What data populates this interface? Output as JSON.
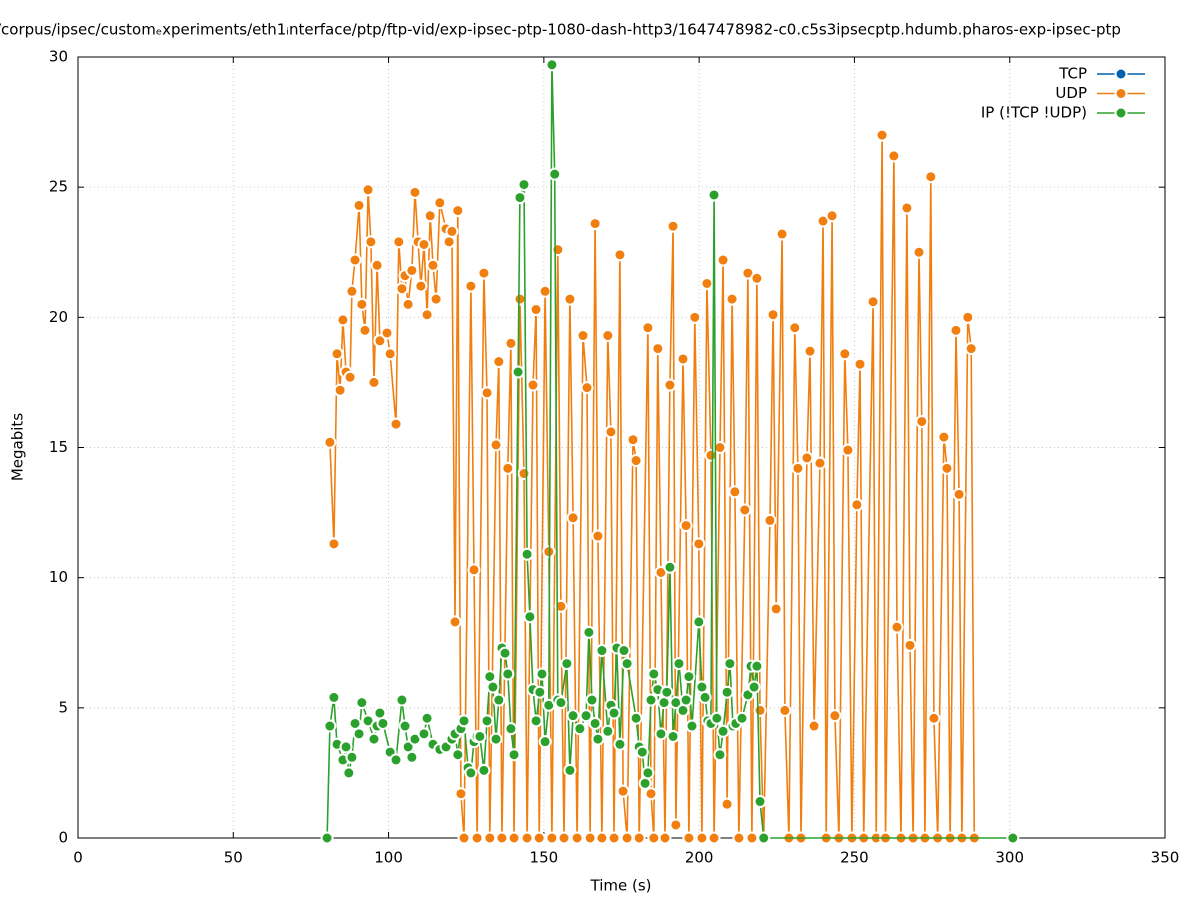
{
  "chart_data": {
    "type": "line",
    "title": "/corpus/ipsec/customₑxperiments/eth1ᵢnterface/ptp/ftp-vid/exp-ipsec-ptp-1080-dash-http3/1647478982-c0.c5s3ipsecptp.hdumb.pharos-exp-ipsec-ptp",
    "x_label": "Time (s)",
    "y_label": "Megabits",
    "xlim": [
      0,
      350
    ],
    "xticks": [
      0,
      50,
      100,
      150,
      200,
      250,
      300,
      350
    ],
    "ylim": [
      0,
      30
    ],
    "yticks": [
      0,
      5,
      10,
      15,
      20,
      25,
      30
    ],
    "grid": true,
    "legend": "top-right",
    "series": [
      {
        "name": "TCP",
        "color": "#0060ad",
        "x": [],
        "values": []
      },
      {
        "name": "UDP",
        "color": "#f07f10",
        "x": [
          81.1,
          82.4,
          83.4,
          84.4,
          85.3,
          86.3,
          87.6,
          88.2,
          89.2,
          90.5,
          91.4,
          92.4,
          93.4,
          94.3,
          95.3,
          96.3,
          97.2,
          99.5,
          100.5,
          102.4,
          103.3,
          104.3,
          105.3,
          106.3,
          107.5,
          108.5,
          109.5,
          110.4,
          111.4,
          112.4,
          113.4,
          114.3,
          115.3,
          116.5,
          118.5,
          119.5,
          120.4,
          121.4,
          122.3,
          123.3,
          124.3,
          126.5,
          127.5,
          128.5,
          130.7,
          131.7,
          132.6,
          134.6,
          135.5,
          136.5,
          138.4,
          139.4,
          140.4,
          142.3,
          143.6,
          144.6,
          146.5,
          147.5,
          148.5,
          150.4,
          151.6,
          152.6,
          154.5,
          155.5,
          156.5,
          158.4,
          159.4,
          160.7,
          162.6,
          163.9,
          164.9,
          166.5,
          167.4,
          168.7,
          170.6,
          171.6,
          172.6,
          174.5,
          175.5,
          176.8,
          178.7,
          179.7,
          180.7,
          183.5,
          184.5,
          185.4,
          186.7,
          187.7,
          189.0,
          190.6,
          191.6,
          192.5,
          194.8,
          195.8,
          196.7,
          198.6,
          199.9,
          200.9,
          202.5,
          203.8,
          204.8,
          206.7,
          207.7,
          209.0,
          210.6,
          211.5,
          212.8,
          214.7,
          215.7,
          217.0,
          218.6,
          219.6,
          220.8,
          222.8,
          223.8,
          224.8,
          226.7,
          227.6,
          228.9,
          230.8,
          231.8,
          232.8,
          234.7,
          235.7,
          237.0,
          238.9,
          239.9,
          240.9,
          242.8,
          243.7,
          245.0,
          246.9,
          247.9,
          249.2,
          250.8,
          251.8,
          253.0,
          256.0,
          257.0,
          258.9,
          260.0,
          262.7,
          263.7,
          265.0,
          266.9,
          267.9,
          268.9,
          270.8,
          271.7,
          272.7,
          274.6,
          275.6,
          276.8,
          278.8,
          279.8,
          280.8,
          282.7,
          283.7,
          284.6,
          286.5,
          287.6,
          288.6
        ],
        "values": [
          15.2,
          11.3,
          18.6,
          17.2,
          19.9,
          17.9,
          17.7,
          21.0,
          22.2,
          24.3,
          20.5,
          19.5,
          24.9,
          22.9,
          17.5,
          22.0,
          19.1,
          19.4,
          18.6,
          15.9,
          22.9,
          21.1,
          21.6,
          20.5,
          21.8,
          24.8,
          22.9,
          21.2,
          22.8,
          20.1,
          23.9,
          22.0,
          20.7,
          24.4,
          23.4,
          22.9,
          23.3,
          8.3,
          24.1,
          1.7,
          0,
          21.2,
          10.3,
          0,
          21.7,
          17.1,
          0,
          15.1,
          18.3,
          0,
          14.2,
          19.0,
          0,
          20.7,
          14.0,
          0,
          17.4,
          20.3,
          0,
          21.0,
          11.0,
          0,
          22.6,
          8.9,
          0,
          20.7,
          12.3,
          0,
          19.3,
          17.3,
          0,
          23.6,
          11.6,
          0,
          19.3,
          15.6,
          0,
          22.4,
          1.8,
          0,
          15.3,
          14.5,
          0,
          19.6,
          1.7,
          0,
          18.8,
          10.2,
          0,
          17.4,
          23.5,
          0.5,
          18.4,
          12.0,
          0,
          20.0,
          11.3,
          0,
          21.3,
          14.7,
          0,
          15.0,
          22.2,
          1.3,
          20.7,
          13.3,
          0,
          12.6,
          21.7,
          0,
          21.5,
          4.9,
          0,
          12.2,
          20.1,
          8.8,
          23.2,
          4.9,
          0,
          19.6,
          14.2,
          0,
          14.6,
          18.7,
          4.3,
          14.4,
          23.7,
          0,
          23.9,
          4.7,
          0,
          18.6,
          14.9,
          0,
          12.8,
          18.2,
          0,
          20.6,
          0,
          27.0,
          0,
          26.2,
          8.1,
          0,
          24.2,
          7.4,
          0,
          22.5,
          16.0,
          0,
          25.4,
          4.6,
          0,
          15.4,
          14.2,
          0,
          19.5,
          13.2,
          0,
          20.0,
          18.8,
          0
        ]
      },
      {
        "name": "IP (!TCP  !UDP)",
        "color": "#2ca02c",
        "x": [
          80.2,
          81.1,
          82.4,
          83.4,
          85.3,
          86.3,
          87.2,
          88.2,
          89.2,
          90.5,
          91.4,
          93.4,
          95.3,
          96.3,
          97.2,
          98.2,
          100.5,
          102.4,
          104.3,
          105.3,
          106.3,
          107.5,
          108.5,
          111.4,
          112.4,
          114.3,
          116.5,
          118.5,
          120.4,
          121.4,
          122.3,
          123.3,
          124.3,
          125.6,
          126.5,
          127.5,
          128.5,
          129.4,
          130.7,
          131.7,
          132.6,
          133.6,
          134.6,
          135.5,
          136.5,
          137.5,
          138.4,
          139.4,
          140.4,
          141.7,
          142.3,
          143.6,
          144.6,
          145.5,
          146.5,
          147.5,
          148.7,
          149.4,
          150.4,
          151.6,
          152.6,
          153.5,
          154.5,
          155.5,
          157.4,
          158.4,
          159.4,
          161.6,
          163.6,
          164.5,
          165.5,
          166.5,
          167.4,
          168.7,
          170.6,
          171.6,
          172.6,
          173.5,
          174.5,
          175.8,
          176.8,
          179.7,
          180.7,
          181.7,
          182.6,
          183.5,
          184.5,
          185.4,
          186.7,
          187.7,
          188.7,
          189.6,
          190.6,
          191.6,
          192.5,
          193.5,
          194.8,
          195.8,
          196.7,
          197.7,
          199.9,
          200.9,
          201.9,
          202.8,
          203.8,
          204.8,
          205.7,
          206.7,
          207.7,
          209.0,
          209.9,
          210.9,
          211.8,
          213.8,
          215.7,
          216.7,
          217.7,
          218.6,
          219.6,
          220.8,
          301.0
        ],
        "values": [
          0,
          4.3,
          5.4,
          3.6,
          3.0,
          3.5,
          2.5,
          3.1,
          4.4,
          4.0,
          5.2,
          4.5,
          3.8,
          4.3,
          4.8,
          4.4,
          3.3,
          3.0,
          5.3,
          4.3,
          3.5,
          3.1,
          3.8,
          4.0,
          4.6,
          3.6,
          3.4,
          3.5,
          3.8,
          4.0,
          3.2,
          4.2,
          4.5,
          2.7,
          2.5,
          3.7,
          3.9,
          3.9,
          2.6,
          4.5,
          6.2,
          5.8,
          3.8,
          5.3,
          7.3,
          7.1,
          6.3,
          4.2,
          3.2,
          17.9,
          24.6,
          25.1,
          10.9,
          8.5,
          5.7,
          4.5,
          5.6,
          6.3,
          3.7,
          5.1,
          29.7,
          25.5,
          5.3,
          5.2,
          6.7,
          2.6,
          4.7,
          4.2,
          4.7,
          7.9,
          5.3,
          4.4,
          3.8,
          7.2,
          4.1,
          5.1,
          4.8,
          7.3,
          3.6,
          7.2,
          6.7,
          4.6,
          3.5,
          3.3,
          2.1,
          2.5,
          5.3,
          6.3,
          5.7,
          4.0,
          5.2,
          5.6,
          10.4,
          3.9,
          5.2,
          6.7,
          4.9,
          5.3,
          6.2,
          4.3,
          8.3,
          5.8,
          5.4,
          4.5,
          4.4,
          24.7,
          4.6,
          3.2,
          4.1,
          5.6,
          6.7,
          4.3,
          4.4,
          4.6,
          5.5,
          6.6,
          5.8,
          6.6,
          1.4,
          0,
          0
        ]
      }
    ]
  }
}
